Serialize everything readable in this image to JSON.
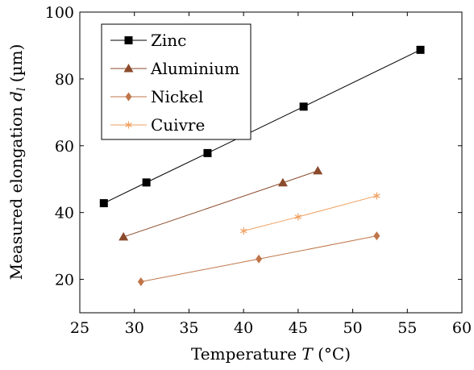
{
  "chart_data": {
    "type": "line",
    "xlabel_prefix": "Temperature ",
    "xlabel_var": "T",
    "xlabel_suffix": " (°C)",
    "ylabel_prefix": "Measured elongation ",
    "ylabel_var": "d",
    "ylabel_sub": "l",
    "ylabel_suffix": " (µm)",
    "xlim": [
      25,
      60
    ],
    "ylim": [
      10,
      100
    ],
    "xticks": [
      25,
      30,
      35,
      40,
      45,
      50,
      55,
      60
    ],
    "yticks": [
      20,
      40,
      60,
      80,
      100
    ],
    "grid": false,
    "legend_position": "top-left",
    "series": [
      {
        "name": "Zinc",
        "color": "#000000",
        "marker": "square",
        "x": [
          27.2,
          31.1,
          36.7,
          45.5,
          56.2
        ],
        "y": [
          42.8,
          49.0,
          57.8,
          71.7,
          88.7
        ]
      },
      {
        "name": "Aluminium",
        "color": "#8b4a2b",
        "marker": "triangle",
        "x": [
          29.0,
          43.6,
          46.8
        ],
        "y": [
          32.7,
          48.9,
          52.5
        ]
      },
      {
        "name": "Nickel",
        "color": "#c0764a",
        "marker": "diamond",
        "x": [
          30.6,
          41.4,
          52.2
        ],
        "y": [
          19.3,
          26.1,
          33.0
        ]
      },
      {
        "name": "Cuivre",
        "color": "#f0a060",
        "marker": "star",
        "x": [
          40.0,
          45.0,
          52.2
        ],
        "y": [
          34.5,
          38.7,
          45.0
        ]
      }
    ]
  }
}
